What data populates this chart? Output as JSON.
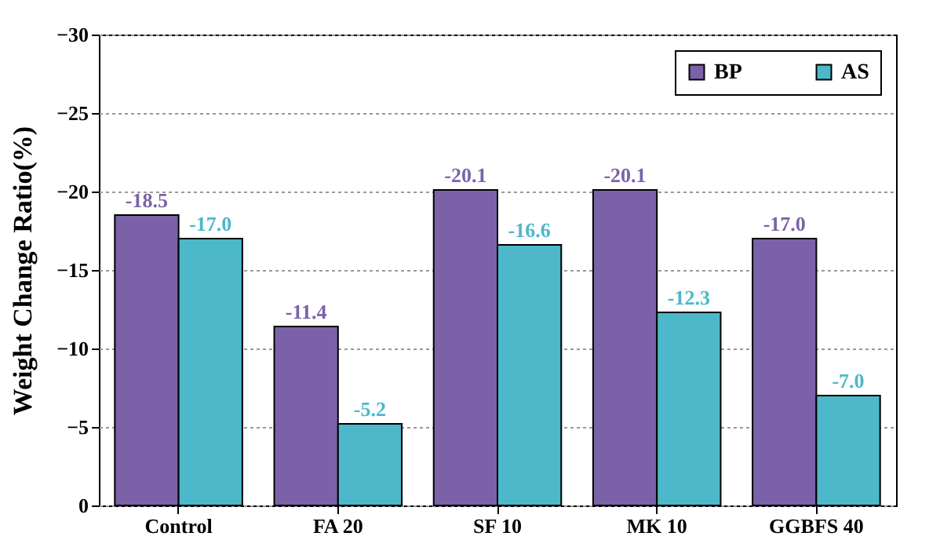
{
  "chart_data": {
    "type": "bar",
    "ylabel": "Weight Change Ratio(%)",
    "categories": [
      "Control",
      "FA 20",
      "SF 10",
      "MK 10",
      "GGBFS 40"
    ],
    "series": [
      {
        "name": "BP",
        "color": "#7b62a8",
        "values": [
          -18.5,
          -11.4,
          -20.1,
          -20.1,
          -17.0
        ],
        "value_labels": [
          "-18.5",
          "-11.4",
          "-20.1",
          "-20.1",
          "-17.0"
        ]
      },
      {
        "name": "AS",
        "color": "#4cb8c9",
        "values": [
          -17.0,
          -5.2,
          -16.6,
          -12.3,
          -7.0
        ],
        "value_labels": [
          "-17.0",
          "-5.2",
          "-16.6",
          "-12.3",
          "-7.0"
        ]
      }
    ],
    "ylim": [
      0,
      -30
    ],
    "yticks": [
      0,
      -5,
      -10,
      -15,
      -20,
      -25,
      -30
    ],
    "grid": "y",
    "legend": "top right"
  }
}
